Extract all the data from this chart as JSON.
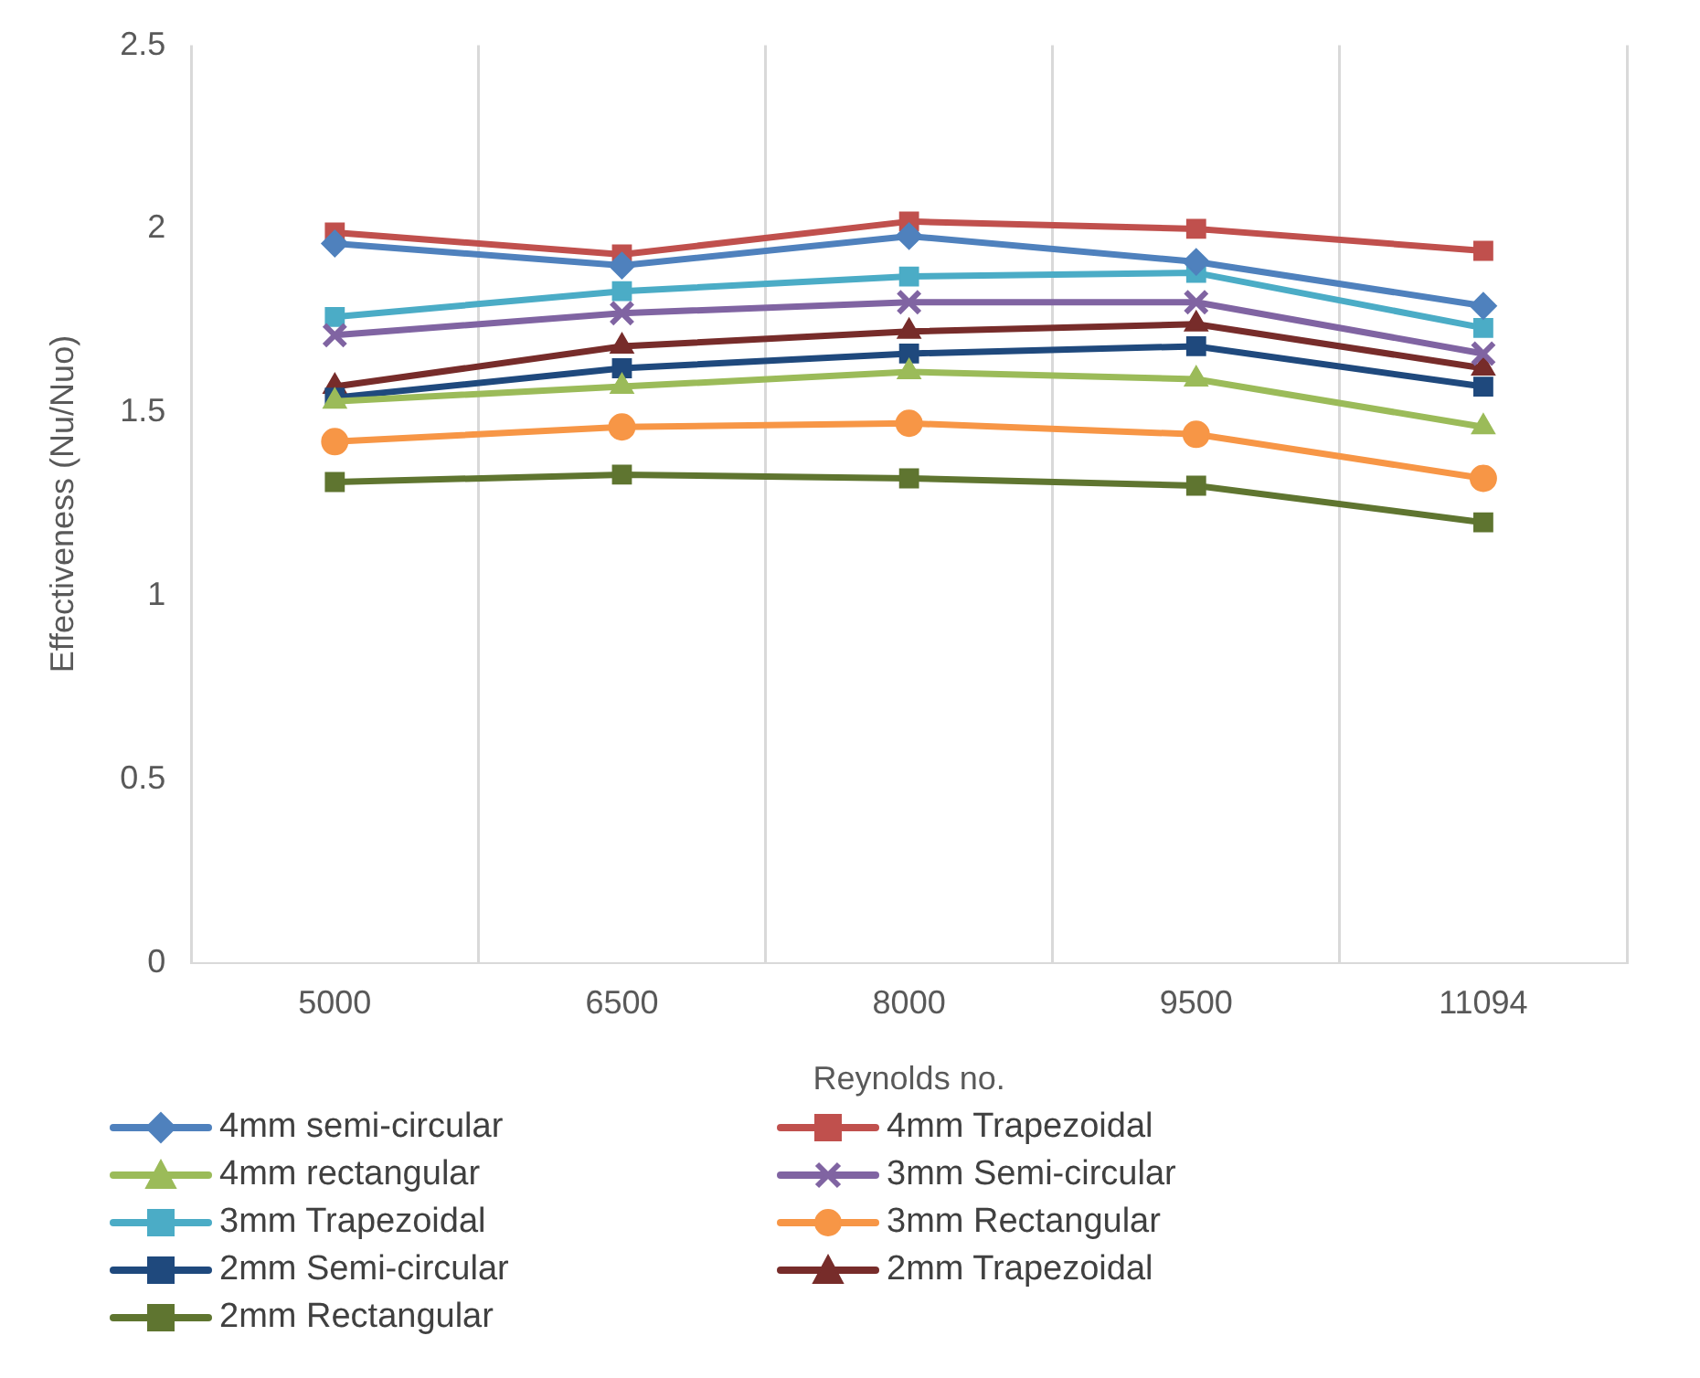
{
  "chart_data": {
    "type": "line",
    "xlabel": "Reynolds no.",
    "ylabel": "Effectiveness (Nu/Nuo)",
    "categories": [
      "5000",
      "6500",
      "8000",
      "9500",
      "11094"
    ],
    "ylim": [
      0,
      2.5
    ],
    "yticks": [
      0,
      0.5,
      1,
      1.5,
      2,
      2.5
    ],
    "grid": "x",
    "legend": "bottom",
    "line_style": "solid",
    "series": [
      {
        "name": "4mm semi-circular",
        "color": "#4f81bd",
        "marker": "diamond",
        "values": [
          1.96,
          1.9,
          1.98,
          1.91,
          1.79
        ]
      },
      {
        "name": "4mm Trapezoidal",
        "color": "#c0504d",
        "marker": "square",
        "values": [
          1.99,
          1.93,
          2.02,
          2.0,
          1.94
        ]
      },
      {
        "name": "4mm rectangular",
        "color": "#9bbb59",
        "marker": "triangle",
        "values": [
          1.53,
          1.57,
          1.61,
          1.59,
          1.46
        ]
      },
      {
        "name": "3mm Semi-circular",
        "color": "#8064a2",
        "marker": "cross",
        "values": [
          1.71,
          1.77,
          1.8,
          1.8,
          1.66
        ]
      },
      {
        "name": "3mm Trapezoidal",
        "color": "#4bacc6",
        "marker": "square",
        "values": [
          1.76,
          1.83,
          1.87,
          1.88,
          1.73
        ]
      },
      {
        "name": "3mm Rectangular",
        "color": "#f79646",
        "marker": "circle",
        "values": [
          1.42,
          1.46,
          1.47,
          1.44,
          1.32
        ]
      },
      {
        "name": "2mm Semi-circular",
        "color": "#1f497d",
        "marker": "square",
        "values": [
          1.54,
          1.62,
          1.66,
          1.68,
          1.57
        ]
      },
      {
        "name": "2mm Trapezoidal",
        "color": "#772c2a",
        "marker": "triangle",
        "values": [
          1.57,
          1.68,
          1.72,
          1.74,
          1.62
        ]
      },
      {
        "name": "2mm Rectangular",
        "color": "#5f7530",
        "marker": "square",
        "values": [
          1.31,
          1.33,
          1.32,
          1.3,
          1.2
        ]
      }
    ]
  }
}
